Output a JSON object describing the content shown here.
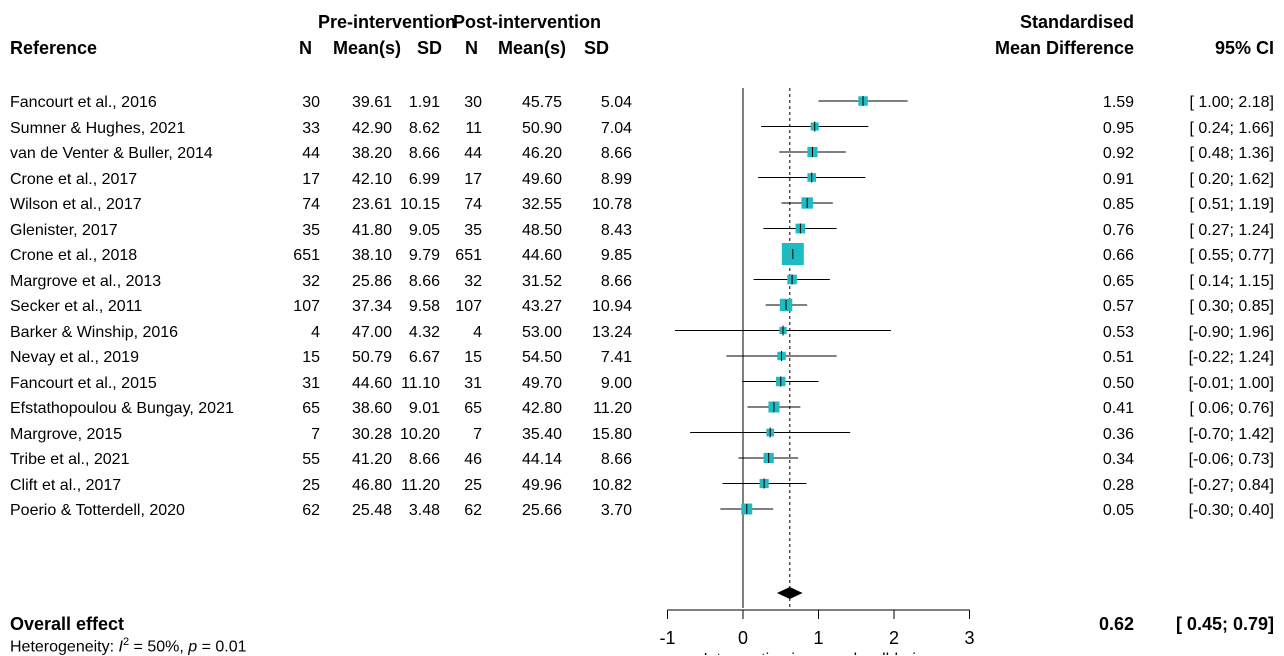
{
  "header": {
    "group_pre": "Pre-intervention",
    "group_post": "Post-intervention",
    "reference": "Reference",
    "n": "N",
    "mean": "Mean(s)",
    "sd": "SD",
    "smd_line1": "Standardised",
    "smd_line2": "Mean Difference",
    "ci": "95% CI"
  },
  "studies": [
    {
      "ref": "Fancourt et al., 2016",
      "n1": "30",
      "m1": "39.61",
      "sd1": "1.91",
      "n2": "30",
      "m2": "45.75",
      "sd2": "5.04",
      "smd": "1.59",
      "ci": "[ 1.00; 2.18]"
    },
    {
      "ref": "Sumner & Hughes, 2021",
      "n1": "33",
      "m1": "42.90",
      "sd1": "8.62",
      "n2": "11",
      "m2": "50.90",
      "sd2": "7.04",
      "smd": "0.95",
      "ci": "[ 0.24; 1.66]"
    },
    {
      "ref": "van de Venter & Buller, 2014",
      "n1": "44",
      "m1": "38.20",
      "sd1": "8.66",
      "n2": "44",
      "m2": "46.20",
      "sd2": "8.66",
      "smd": "0.92",
      "ci": "[ 0.48; 1.36]"
    },
    {
      "ref": "Crone et al., 2017",
      "n1": "17",
      "m1": "42.10",
      "sd1": "6.99",
      "n2": "17",
      "m2": "49.60",
      "sd2": "8.99",
      "smd": "0.91",
      "ci": "[ 0.20; 1.62]"
    },
    {
      "ref": "Wilson et al., 2017",
      "n1": "74",
      "m1": "23.61",
      "sd1": "10.15",
      "n2": "74",
      "m2": "32.55",
      "sd2": "10.78",
      "smd": "0.85",
      "ci": "[ 0.51; 1.19]"
    },
    {
      "ref": "Glenister, 2017",
      "n1": "35",
      "m1": "41.80",
      "sd1": "9.05",
      "n2": "35",
      "m2": "48.50",
      "sd2": "8.43",
      "smd": "0.76",
      "ci": "[ 0.27; 1.24]"
    },
    {
      "ref": "Crone et al., 2018",
      "n1": "651",
      "m1": "38.10",
      "sd1": "9.79",
      "n2": "651",
      "m2": "44.60",
      "sd2": "9.85",
      "smd": "0.66",
      "ci": "[ 0.55; 0.77]"
    },
    {
      "ref": "Margrove et al., 2013",
      "n1": "32",
      "m1": "25.86",
      "sd1": "8.66",
      "n2": "32",
      "m2": "31.52",
      "sd2": "8.66",
      "smd": "0.65",
      "ci": "[ 0.14; 1.15]"
    },
    {
      "ref": "Secker et al., 2011",
      "n1": "107",
      "m1": "37.34",
      "sd1": "9.58",
      "n2": "107",
      "m2": "43.27",
      "sd2": "10.94",
      "smd": "0.57",
      "ci": "[ 0.30; 0.85]"
    },
    {
      "ref": "Barker & Winship, 2016",
      "n1": "4",
      "m1": "47.00",
      "sd1": "4.32",
      "n2": "4",
      "m2": "53.00",
      "sd2": "13.24",
      "smd": "0.53",
      "ci": "[-0.90; 1.96]"
    },
    {
      "ref": "Nevay et al., 2019",
      "n1": "15",
      "m1": "50.79",
      "sd1": "6.67",
      "n2": "15",
      "m2": "54.50",
      "sd2": "7.41",
      "smd": "0.51",
      "ci": "[-0.22; 1.24]"
    },
    {
      "ref": "Fancourt et al., 2015",
      "n1": "31",
      "m1": "44.60",
      "sd1": "11.10",
      "n2": "31",
      "m2": "49.70",
      "sd2": "9.00",
      "smd": "0.50",
      "ci": "[-0.01; 1.00]"
    },
    {
      "ref": "Efstathopoulou & Bungay, 2021",
      "n1": "65",
      "m1": "38.60",
      "sd1": "9.01",
      "n2": "65",
      "m2": "42.80",
      "sd2": "11.20",
      "smd": "0.41",
      "ci": "[ 0.06; 0.76]"
    },
    {
      "ref": "Margrove, 2015",
      "n1": "7",
      "m1": "30.28",
      "sd1": "10.20",
      "n2": "7",
      "m2": "35.40",
      "sd2": "15.80",
      "smd": "0.36",
      "ci": "[-0.70; 1.42]"
    },
    {
      "ref": "Tribe et al., 2021",
      "n1": "55",
      "m1": "41.20",
      "sd1": "8.66",
      "n2": "46",
      "m2": "44.14",
      "sd2": "8.66",
      "smd": "0.34",
      "ci": "[-0.06; 0.73]"
    },
    {
      "ref": "Clift et al., 2017",
      "n1": "25",
      "m1": "46.80",
      "sd1": "11.20",
      "n2": "25",
      "m2": "49.96",
      "sd2": "10.82",
      "smd": "0.28",
      "ci": "[-0.27; 0.84]"
    },
    {
      "ref": "Poerio & Totterdell, 2020",
      "n1": "62",
      "m1": "25.48",
      "sd1": "3.48",
      "n2": "62",
      "m2": "25.66",
      "sd2": "3.70",
      "smd": "0.05",
      "ci": "[-0.30; 0.40]"
    }
  ],
  "overall": {
    "label": "Overall effect",
    "value": "0.62",
    "ci": "[ 0.45; 0.79]",
    "het_prefix": "Heterogeneity: ",
    "het_i": "I",
    "het_sup": "2",
    "het_mid": " = 50%, ",
    "het_p": "p",
    "het_tail": " = 0.01"
  },
  "chart_data": {
    "type": "forest",
    "xlabel": "Intervention improved well-being",
    "xlim": [
      -1,
      3
    ],
    "xticks": [
      -1,
      0,
      1,
      2,
      3
    ],
    "null_line": 0,
    "pooled_line": 0.62,
    "marker_color": "#1ebcc2",
    "series": [
      {
        "smd": 1.59,
        "lo": 1.0,
        "hi": 2.18,
        "n": 30
      },
      {
        "smd": 0.95,
        "lo": 0.24,
        "hi": 1.66,
        "n": 11
      },
      {
        "smd": 0.92,
        "lo": 0.48,
        "hi": 1.36,
        "n": 44
      },
      {
        "smd": 0.91,
        "lo": 0.2,
        "hi": 1.62,
        "n": 17
      },
      {
        "smd": 0.85,
        "lo": 0.51,
        "hi": 1.19,
        "n": 74
      },
      {
        "smd": 0.76,
        "lo": 0.27,
        "hi": 1.24,
        "n": 35
      },
      {
        "smd": 0.66,
        "lo": 0.55,
        "hi": 0.77,
        "n": 651
      },
      {
        "smd": 0.65,
        "lo": 0.14,
        "hi": 1.15,
        "n": 32
      },
      {
        "smd": 0.57,
        "lo": 0.3,
        "hi": 0.85,
        "n": 107
      },
      {
        "smd": 0.53,
        "lo": -0.9,
        "hi": 1.96,
        "n": 4
      },
      {
        "smd": 0.51,
        "lo": -0.22,
        "hi": 1.24,
        "n": 15
      },
      {
        "smd": 0.5,
        "lo": -0.01,
        "hi": 1.0,
        "n": 31
      },
      {
        "smd": 0.41,
        "lo": 0.06,
        "hi": 0.76,
        "n": 65
      },
      {
        "smd": 0.36,
        "lo": -0.7,
        "hi": 1.42,
        "n": 7
      },
      {
        "smd": 0.34,
        "lo": -0.06,
        "hi": 0.73,
        "n": 46
      },
      {
        "smd": 0.28,
        "lo": -0.27,
        "hi": 0.84,
        "n": 25
      },
      {
        "smd": 0.05,
        "lo": -0.3,
        "hi": 0.4,
        "n": 62
      }
    ],
    "overall": {
      "smd": 0.62,
      "lo": 0.45,
      "hi": 0.79
    }
  }
}
